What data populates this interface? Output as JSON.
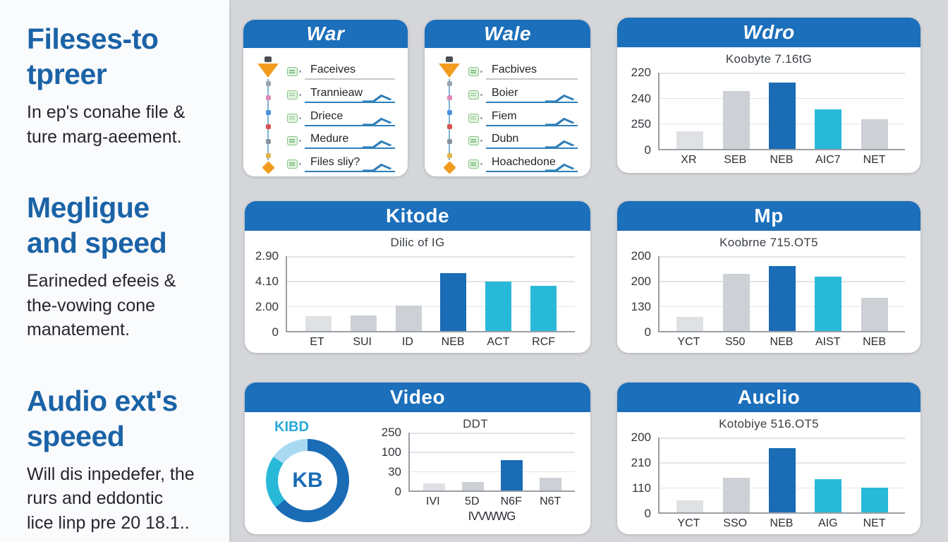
{
  "colors": {
    "blue": "#1a6cb5",
    "cyan": "#29b9d8",
    "gray": "#cdd0d4",
    "lightgray": "#dfe1e4",
    "lightblue": "#a9d9f2",
    "header_blue": "#1c6fba",
    "heading_text_blue": "#1b63a7"
  },
  "left_panel": {
    "sections": [
      {
        "heading_lines": [
          "Fileses-to",
          "tpreer"
        ],
        "body_lines": [
          "In ep's conahe file &",
          "ture marg-aeement."
        ]
      },
      {
        "heading_lines": [
          "Megligue",
          "and speed"
        ],
        "body_lines": [
          "Earineded efeeis &",
          "the-vowing cone",
          "manatement."
        ]
      },
      {
        "heading_lines": [
          "Audio ext's",
          "speeed"
        ],
        "body_lines": [
          "Will dis inpedefer, the",
          "rurs and eddontic",
          "lice linp pre 20 18.1.."
        ]
      }
    ]
  },
  "cards": {
    "war": {
      "title": "War",
      "items": [
        {
          "label": "Faceives",
          "checked": false
        },
        {
          "label": "Trannieaw",
          "checked": true
        },
        {
          "label": "Driece",
          "checked": true
        },
        {
          "label": "Medure",
          "checked": true
        },
        {
          "label": "Files sliy?",
          "checked": true
        }
      ]
    },
    "wale": {
      "title": "Wale",
      "items": [
        {
          "label": "Facbives",
          "checked": false
        },
        {
          "label": "Boier",
          "checked": true
        },
        {
          "label": "Fiem",
          "checked": true
        },
        {
          "label": "Dubn",
          "checked": true
        },
        {
          "label": "Hoachedone",
          "checked": true
        }
      ]
    },
    "wdro": {
      "title": "Wdro",
      "subtitle": "Koobyte 7.16tG"
    },
    "kitode": {
      "title": "Kitode",
      "subtitle": "Dilic of IG"
    },
    "mp": {
      "title": "Mp",
      "subtitle": "Koobrne 715.OT5"
    },
    "video": {
      "title": "Video",
      "subtitle": "DDT",
      "footer": "IVVWWG",
      "donut": {
        "label": "KIBD",
        "center": "KB",
        "segments": [
          {
            "color": "blue",
            "from": 0,
            "to": 230
          },
          {
            "color": "cyan",
            "from": 230,
            "to": 305
          },
          {
            "color": "lightblue",
            "from": 305,
            "to": 360
          }
        ]
      }
    },
    "auclio": {
      "title": "Auclio",
      "subtitle": "Kotobiye 516.OT5"
    }
  },
  "charts": {
    "wdro": {
      "ticks": [
        "220",
        "240",
        "250",
        "0"
      ],
      "bars": [
        {
          "label": "XR",
          "value": 23,
          "color": "lightgray"
        },
        {
          "label": "SEB",
          "value": 76,
          "color": "gray"
        },
        {
          "label": "NEB",
          "value": 87,
          "color": "blue"
        },
        {
          "label": "AIC7",
          "value": 52,
          "color": "cyan"
        },
        {
          "label": "NET",
          "value": 39,
          "color": "gray"
        }
      ]
    },
    "kitode": {
      "ticks": [
        "2.90",
        "4.10",
        "2.00",
        "0"
      ],
      "bars": [
        {
          "label": "ET",
          "value": 20,
          "color": "lightgray"
        },
        {
          "label": "SUI",
          "value": 21,
          "color": "gray"
        },
        {
          "label": "ID",
          "value": 34,
          "color": "gray"
        },
        {
          "label": "NEB",
          "value": 77,
          "color": "blue"
        },
        {
          "label": "ACT",
          "value": 66,
          "color": "cyan"
        },
        {
          "label": "RCF",
          "value": 60,
          "color": "cyan"
        }
      ]
    },
    "mp": {
      "ticks": [
        "200",
        "200",
        "130",
        "0"
      ],
      "bars": [
        {
          "label": "YCT",
          "value": 19,
          "color": "lightgray"
        },
        {
          "label": "S50",
          "value": 76,
          "color": "gray"
        },
        {
          "label": "NEB",
          "value": 87,
          "color": "blue"
        },
        {
          "label": "AIST",
          "value": 73,
          "color": "cyan"
        },
        {
          "label": "NEB",
          "value": 44,
          "color": "gray"
        }
      ]
    },
    "video": {
      "ticks": [
        "250",
        "100",
        "30",
        "0"
      ],
      "bars": [
        {
          "label": "IVI",
          "value": 12,
          "color": "lightgray"
        },
        {
          "label": "5D",
          "value": 15,
          "color": "gray"
        },
        {
          "label": "N6F",
          "value": 52,
          "color": "blue"
        },
        {
          "label": "N6T",
          "value": 22,
          "color": "gray"
        }
      ]
    },
    "auclio": {
      "ticks": [
        "200",
        "210",
        "110",
        "0"
      ],
      "bars": [
        {
          "label": "YCT",
          "value": 16,
          "color": "lightgray"
        },
        {
          "label": "SSO",
          "value": 46,
          "color": "gray"
        },
        {
          "label": "NEB",
          "value": 86,
          "color": "blue"
        },
        {
          "label": "AIG",
          "value": 44,
          "color": "cyan"
        },
        {
          "label": "NET",
          "value": 33,
          "color": "cyan"
        }
      ]
    }
  },
  "chart_data": [
    {
      "type": "bar",
      "title": "Wdro",
      "subtitle": "Koobyte 7.16tG",
      "categories": [
        "XR",
        "SEB",
        "NEB",
        "AIC7",
        "NET"
      ],
      "values": [
        23,
        76,
        87,
        52,
        39
      ],
      "y_tick_labels": [
        "220",
        "240",
        "250",
        "0"
      ],
      "note": "values are percent of plot height; printed axis labels are garbled",
      "grid": true,
      "legend": false
    },
    {
      "type": "bar",
      "title": "Kitode",
      "subtitle": "Dilic of IG",
      "categories": [
        "ET",
        "SUI",
        "ID",
        "NEB",
        "ACT",
        "RCF"
      ],
      "values": [
        20,
        21,
        34,
        77,
        66,
        60
      ],
      "y_tick_labels": [
        "2.90",
        "4.10",
        "2.00",
        "0"
      ],
      "grid": true,
      "legend": false
    },
    {
      "type": "bar",
      "title": "Mp",
      "subtitle": "Koobrne 715.OT5",
      "categories": [
        "YCT",
        "S50",
        "NEB",
        "AIST",
        "NEB"
      ],
      "values": [
        19,
        76,
        87,
        73,
        44
      ],
      "y_tick_labels": [
        "200",
        "200",
        "130",
        "0"
      ],
      "grid": true,
      "legend": false
    },
    {
      "type": "bar",
      "title": "Video",
      "subtitle": "DDT",
      "categories": [
        "IVI",
        "5D",
        "N6F",
        "N6T"
      ],
      "values": [
        12,
        15,
        52,
        22
      ],
      "y_tick_labels": [
        "250",
        "100",
        "30",
        "0"
      ],
      "footnote": "IVVWWG",
      "grid": true,
      "legend": false
    },
    {
      "type": "pie",
      "title": "Video donut",
      "center_label": "KB",
      "outer_label": "KIBD",
      "slices": [
        {
          "label": "dark-blue",
          "degrees": 230
        },
        {
          "label": "cyan",
          "degrees": 75
        },
        {
          "label": "light-blue",
          "degrees": 55
        }
      ]
    },
    {
      "type": "bar",
      "title": "Auclio",
      "subtitle": "Kotobiye 516.OT5",
      "categories": [
        "YCT",
        "SSO",
        "NEB",
        "AIG",
        "NET"
      ],
      "values": [
        16,
        46,
        86,
        44,
        33
      ],
      "y_tick_labels": [
        "200",
        "210",
        "110",
        "0"
      ],
      "grid": true,
      "legend": false
    }
  ]
}
